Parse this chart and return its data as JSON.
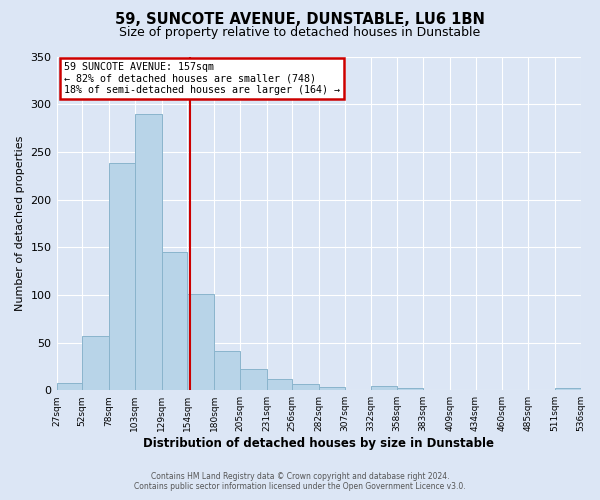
{
  "title": "59, SUNCOTE AVENUE, DUNSTABLE, LU6 1BN",
  "subtitle": "Size of property relative to detached houses in Dunstable",
  "xlabel": "Distribution of detached houses by size in Dunstable",
  "ylabel": "Number of detached properties",
  "bin_edges": [
    27,
    52,
    78,
    103,
    129,
    154,
    180,
    205,
    231,
    256,
    282,
    307,
    332,
    358,
    383,
    409,
    434,
    460,
    485,
    511,
    536
  ],
  "bin_counts": [
    8,
    57,
    238,
    290,
    145,
    101,
    41,
    22,
    12,
    6,
    3,
    0,
    4,
    2,
    0,
    0,
    0,
    0,
    0,
    2
  ],
  "bar_color": "#b8d4e8",
  "bar_edge_color": "#8ab4cc",
  "property_size": 157,
  "vline_color": "#cc0000",
  "ylim": [
    0,
    350
  ],
  "yticks": [
    0,
    50,
    100,
    150,
    200,
    250,
    300,
    350
  ],
  "annotation_title": "59 SUNCOTE AVENUE: 157sqm",
  "annotation_line1": "← 82% of detached houses are smaller (748)",
  "annotation_line2": "18% of semi-detached houses are larger (164) →",
  "annotation_box_color": "#ffffff",
  "annotation_border_color": "#cc0000",
  "footer1": "Contains HM Land Registry data © Crown copyright and database right 2024.",
  "footer2": "Contains public sector information licensed under the Open Government Licence v3.0.",
  "background_color": "#dce6f5",
  "plot_bg_color": "#dce6f5",
  "title_fontsize": 10.5,
  "subtitle_fontsize": 9,
  "tick_labels": [
    "27sqm",
    "52sqm",
    "78sqm",
    "103sqm",
    "129sqm",
    "154sqm",
    "180sqm",
    "205sqm",
    "231sqm",
    "256sqm",
    "282sqm",
    "307sqm",
    "332sqm",
    "358sqm",
    "383sqm",
    "409sqm",
    "434sqm",
    "460sqm",
    "485sqm",
    "511sqm",
    "536sqm"
  ]
}
